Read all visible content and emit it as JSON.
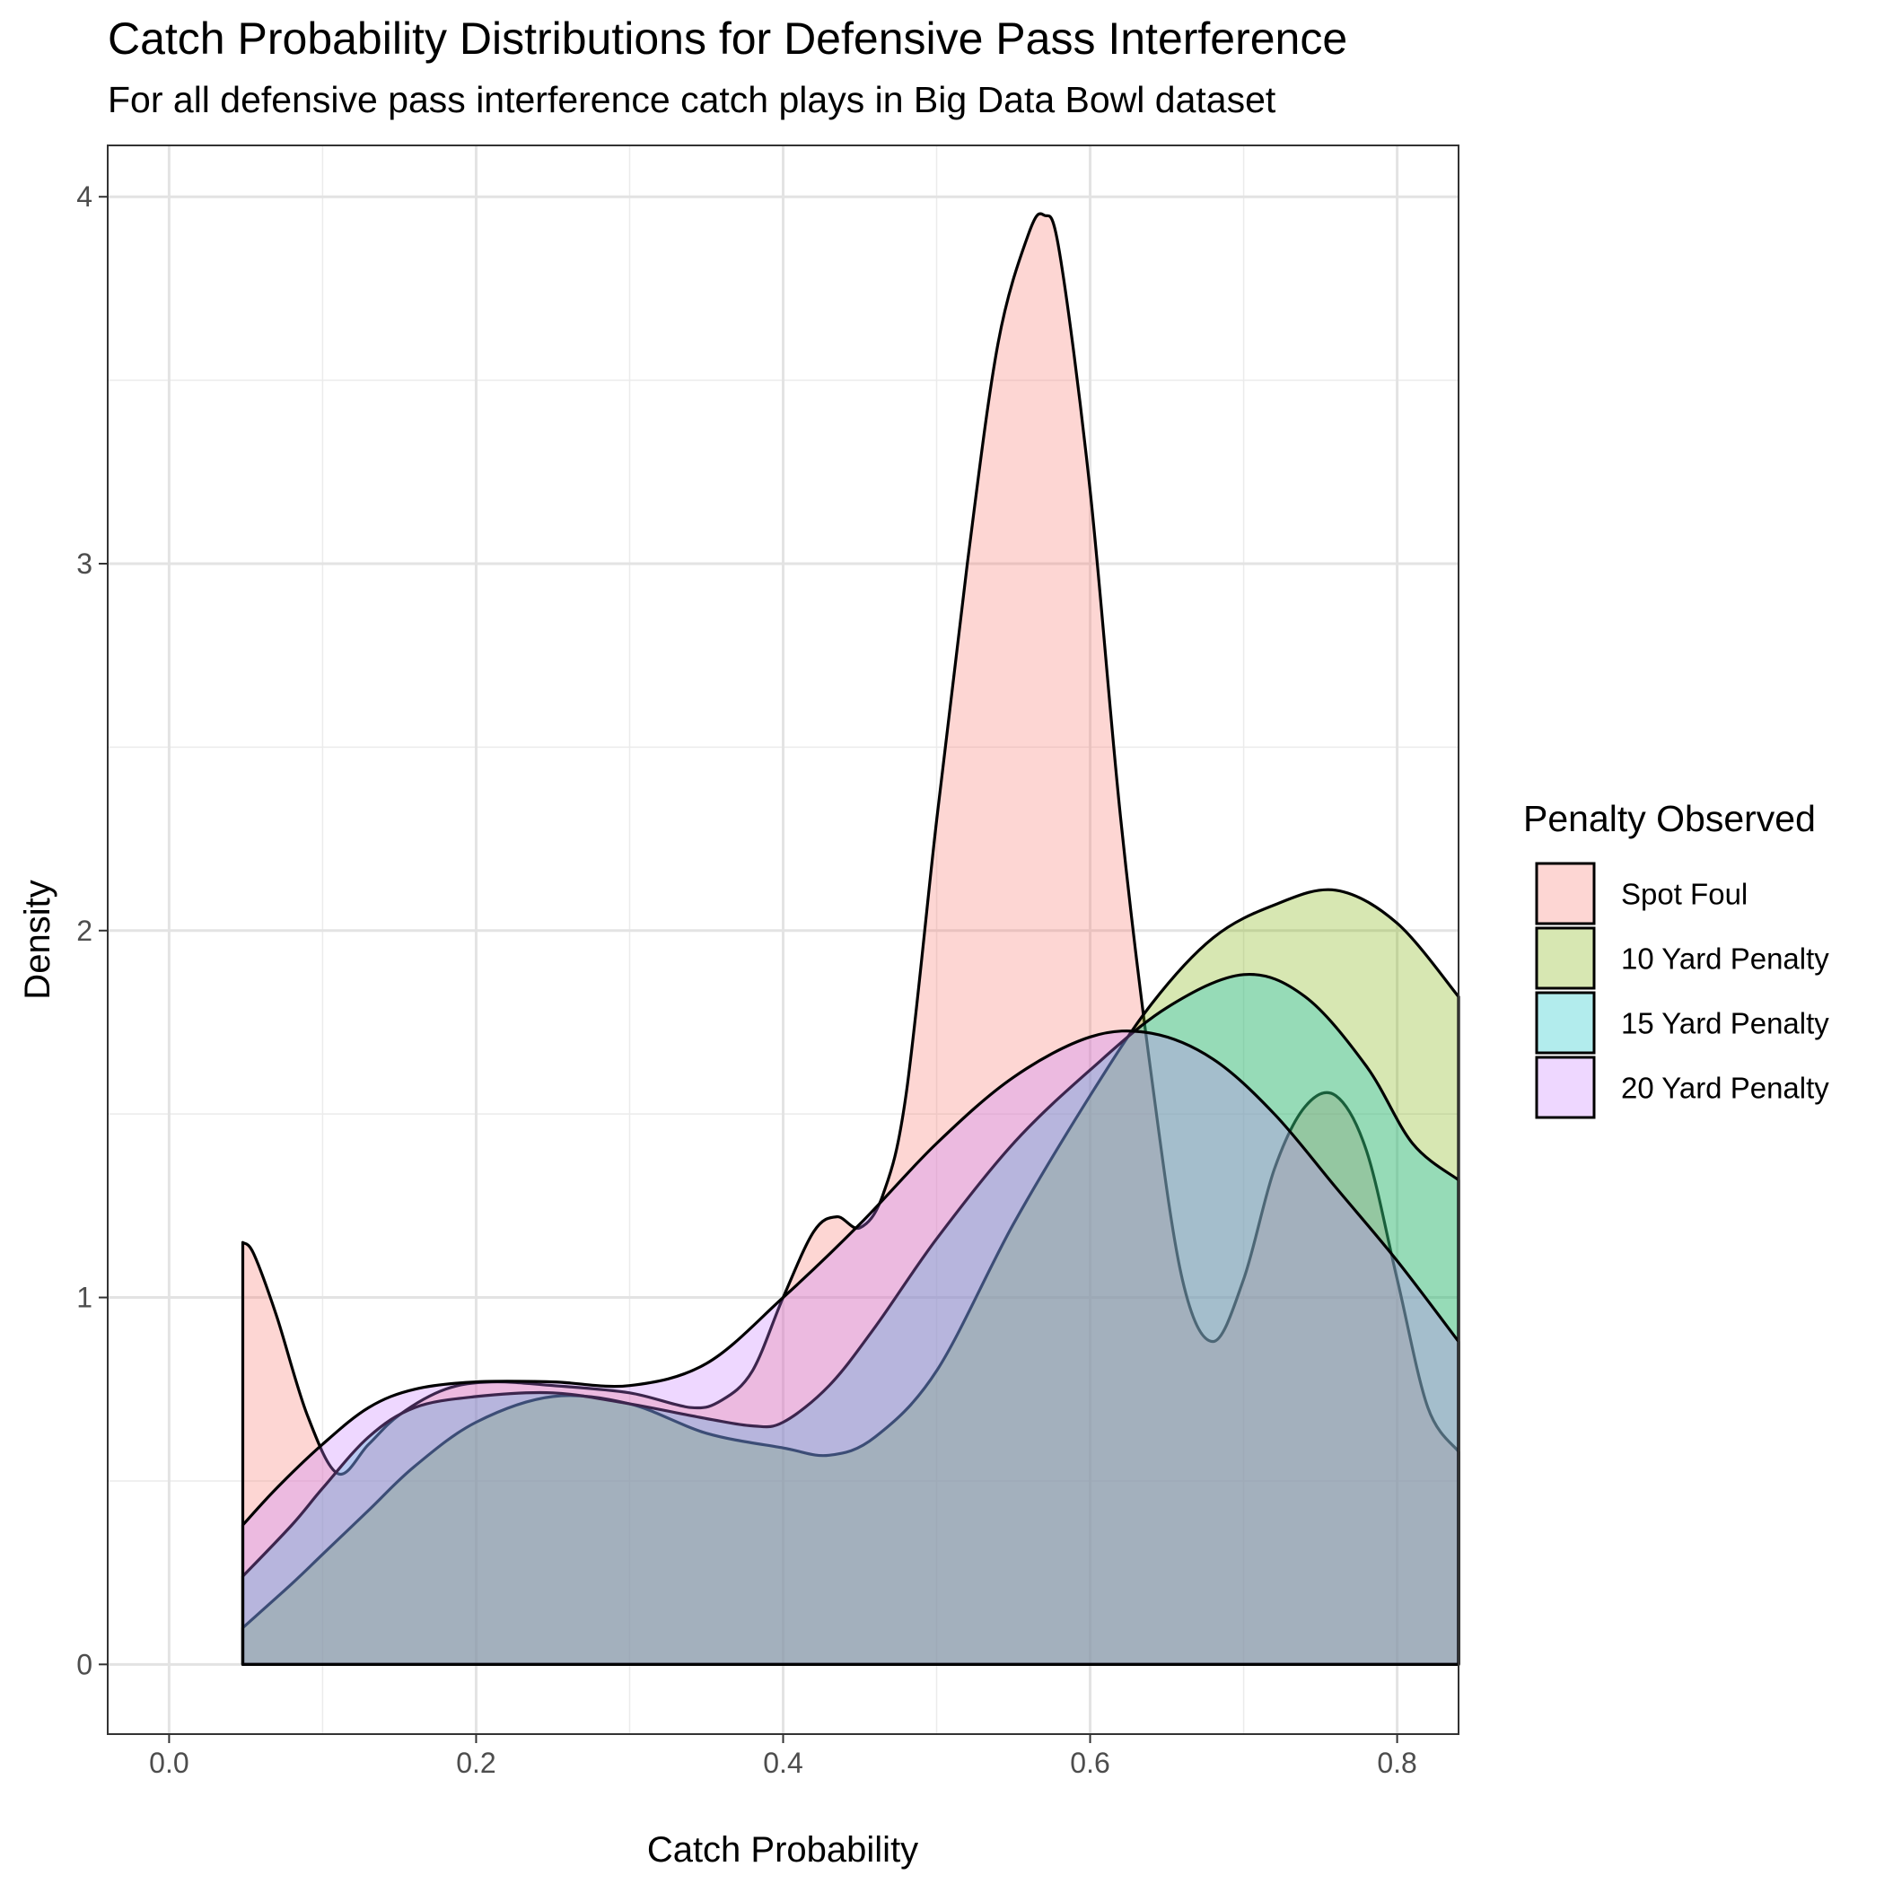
{
  "chart_data": {
    "type": "area",
    "title": "Catch Probability Distributions for Defensive Pass Interference",
    "subtitle": "For all defensive pass interference catch plays in Big Data Bowl dataset",
    "xlabel": "Catch Probability",
    "ylabel": "Density",
    "xlim": [
      -0.04,
      0.84
    ],
    "ylim": [
      -0.19,
      4.14
    ],
    "x_ticks": [
      0.0,
      0.2,
      0.4,
      0.6,
      0.8
    ],
    "x_tick_labels": [
      "0.0",
      "0.2",
      "0.4",
      "0.6",
      "0.8"
    ],
    "y_ticks": [
      0,
      1,
      2,
      3,
      4
    ],
    "y_tick_labels": [
      "0",
      "1",
      "2",
      "3",
      "4"
    ],
    "grid": true,
    "legend": {
      "title": "Penalty Observed",
      "position": "right"
    },
    "series": [
      {
        "name": "Spot Foul",
        "color": "#F8766D",
        "x": [
          0.048,
          0.055,
          0.07,
          0.09,
          0.11,
          0.13,
          0.15,
          0.18,
          0.21,
          0.25,
          0.3,
          0.34,
          0.36,
          0.38,
          0.4,
          0.42,
          0.435,
          0.45,
          0.465,
          0.48,
          0.5,
          0.52,
          0.54,
          0.56,
          0.57,
          0.58,
          0.6,
          0.62,
          0.64,
          0.66,
          0.68,
          0.7,
          0.72,
          0.74,
          0.76,
          0.78,
          0.8,
          0.82,
          0.84
        ],
        "y": [
          1.15,
          1.12,
          0.95,
          0.68,
          0.52,
          0.6,
          0.68,
          0.75,
          0.77,
          0.76,
          0.74,
          0.7,
          0.72,
          0.8,
          1.0,
          1.18,
          1.22,
          1.19,
          1.28,
          1.55,
          2.3,
          3.0,
          3.6,
          3.9,
          3.95,
          3.85,
          3.2,
          2.3,
          1.6,
          1.05,
          0.88,
          1.05,
          1.35,
          1.52,
          1.55,
          1.4,
          1.05,
          0.7,
          0.58
        ]
      },
      {
        "name": "10 Yard Penalty",
        "color": "#7CAE00",
        "x": [
          0.048,
          0.08,
          0.1,
          0.13,
          0.16,
          0.2,
          0.25,
          0.3,
          0.35,
          0.4,
          0.43,
          0.46,
          0.5,
          0.55,
          0.6,
          0.64,
          0.68,
          0.72,
          0.76,
          0.8,
          0.84
        ],
        "y": [
          0.1,
          0.22,
          0.3,
          0.42,
          0.54,
          0.66,
          0.73,
          0.71,
          0.63,
          0.59,
          0.57,
          0.62,
          0.8,
          1.2,
          1.55,
          1.8,
          1.98,
          2.07,
          2.11,
          2.02,
          1.82
        ]
      },
      {
        "name": "15 Yard Penalty",
        "color": "#00BFC4",
        "x": [
          0.048,
          0.08,
          0.1,
          0.13,
          0.16,
          0.2,
          0.25,
          0.3,
          0.35,
          0.38,
          0.4,
          0.43,
          0.46,
          0.5,
          0.55,
          0.6,
          0.65,
          0.7,
          0.74,
          0.78,
          0.81,
          0.84
        ],
        "y": [
          0.24,
          0.38,
          0.48,
          0.62,
          0.7,
          0.73,
          0.74,
          0.71,
          0.67,
          0.65,
          0.66,
          0.76,
          0.92,
          1.16,
          1.42,
          1.62,
          1.79,
          1.88,
          1.82,
          1.63,
          1.42,
          1.32
        ]
      },
      {
        "name": "20 Yard Penalty",
        "color": "#C77CFF",
        "x": [
          0.048,
          0.07,
          0.1,
          0.13,
          0.16,
          0.2,
          0.25,
          0.3,
          0.35,
          0.4,
          0.45,
          0.5,
          0.55,
          0.6,
          0.64,
          0.68,
          0.72,
          0.76,
          0.8,
          0.84
        ],
        "y": [
          0.38,
          0.48,
          0.6,
          0.7,
          0.75,
          0.77,
          0.77,
          0.76,
          0.82,
          1.0,
          1.2,
          1.42,
          1.6,
          1.71,
          1.72,
          1.65,
          1.5,
          1.3,
          1.1,
          0.88
        ]
      }
    ]
  }
}
